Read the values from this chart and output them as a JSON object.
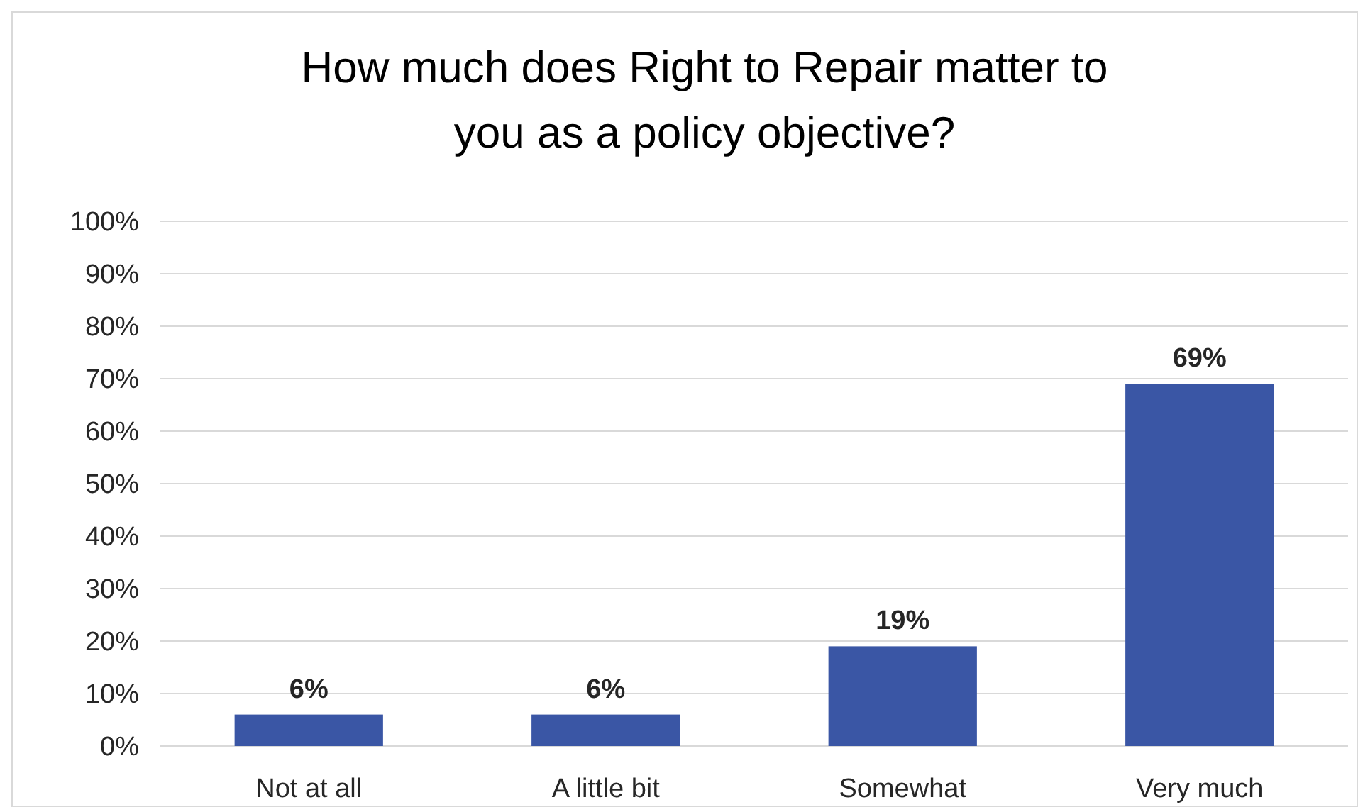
{
  "chart_data": {
    "type": "bar",
    "title": "How much does Right to Repair matter to you as a policy objective?",
    "categories": [
      "Not at all",
      "A little bit",
      "Somewhat",
      "Very much"
    ],
    "values": [
      6,
      6,
      19,
      69
    ],
    "value_labels": [
      "6%",
      "6%",
      "19%",
      "69%"
    ],
    "color": "#3a56a5",
    "ylim": [
      0,
      100
    ],
    "yticks": [
      {
        "value": 0,
        "label": "0%"
      },
      {
        "value": 10,
        "label": "10%"
      },
      {
        "value": 20,
        "label": "20%"
      },
      {
        "value": 30,
        "label": "30%"
      },
      {
        "value": 40,
        "label": "40%"
      },
      {
        "value": 50,
        "label": "50%"
      },
      {
        "value": 60,
        "label": "60%"
      },
      {
        "value": 70,
        "label": "70%"
      },
      {
        "value": 80,
        "label": "80%"
      },
      {
        "value": 90,
        "label": "90%"
      },
      {
        "value": 100,
        "label": "100%"
      }
    ],
    "grid": "y"
  }
}
